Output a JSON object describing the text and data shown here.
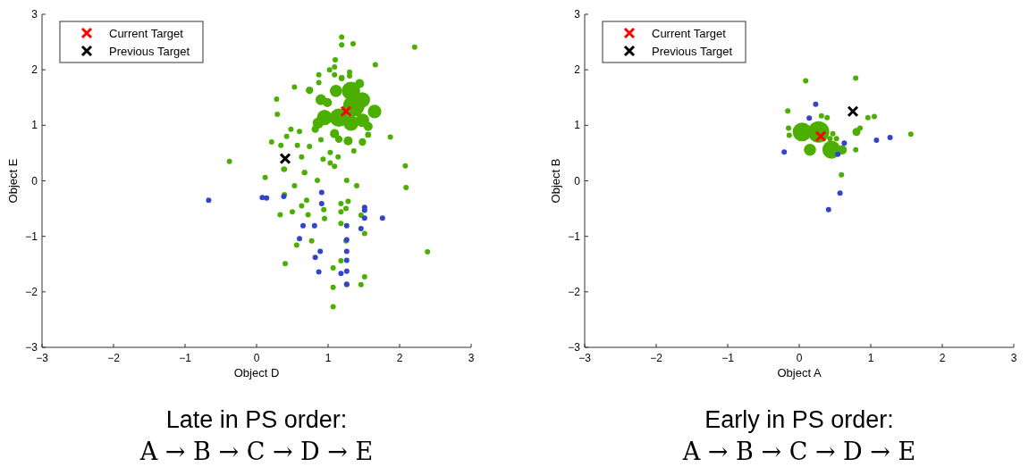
{
  "chart_data": [
    {
      "type": "bubble",
      "xlabel": "Object D",
      "ylabel": "Object E",
      "xlim": [
        -3,
        3
      ],
      "ylim": [
        -3,
        3
      ],
      "xticks": [
        -3,
        -2,
        -1,
        0,
        1,
        2,
        3
      ],
      "yticks": [
        -3,
        -2,
        -1,
        0,
        1,
        2,
        3
      ],
      "grid": false,
      "legend": "top left",
      "annotations": [
        "Late in PS order:",
        "A → B → C → D → E"
      ],
      "series": [
        {
          "color": "#4caf00",
          "x": [
            1.32,
            1.11,
            1.44,
            1.36,
            1.48,
            1.65,
            1.15,
            0.95,
            0.86,
            1.32,
            1.48,
            1.56,
            0.9,
            0.99,
            0.74,
            0.82,
            1.09,
            1.15,
            1.28,
            1.48,
            1.56,
            1.19
          ],
          "values": [
            1.62,
            1.62,
            1.75,
            1.35,
            1.46,
            1.25,
            1.14,
            1.14,
            1.04,
            1.04,
            1.09,
            0.98,
            1.46,
            1.41,
            1.63,
            0.93,
            0.85,
            0.75,
            0.72,
            0.7,
            0.83,
            1.85
          ],
          "sizes": [
            0.73,
            0.33,
            0.18,
            1,
            0.51,
            0.4,
            0.73,
            0.51,
            0.26,
            0.51,
            0.4,
            0.18,
            0.26,
            0.18,
            0.12,
            0.12,
            0.18,
            0.12,
            0.18,
            0.12,
            0.08,
            0.08
          ]
        },
        {
          "type": "scatter",
          "marker": "circle",
          "color": "#4caf00",
          "x": [
            1.3,
            1.09,
            1.1,
            1.02,
            0.87,
            0.87,
            1.09,
            1.3,
            1.66,
            0.9,
            1.36,
            1.03,
            1.14,
            0.29,
            0.48,
            0.6,
            0.42,
            0.57,
            0.74,
            0.34,
            1.09,
            1.87,
            2.08,
            1.19,
            1.19,
            1.35,
            2.21,
            0.28,
            0.53,
            0.21,
            0.12,
            -0.38,
            0.39,
            0.63,
            0.67,
            0.93,
            1.03,
            0.38,
            0.67,
            0.85,
            1.26,
            1.4,
            0.53,
            0.39,
            0.7,
            0.63,
            0.5,
            0.94,
            1.18,
            1.28,
            1.18,
            1.25,
            0.95,
            1.18,
            1.46,
            1.51,
            0.77,
            0.56,
            1.25,
            0.4,
            1.07,
            1.18,
            1.51,
            1.46,
            1.07,
            1.07,
            1.26,
            2.39,
            2.09,
            0.33,
            0.72
          ],
          "values": [
            1.96,
            2.05,
            2.18,
            2.0,
            1.91,
            1.77,
            1.91,
            1.89,
            2.09,
            0.74,
            0.54,
            0.51,
            0.43,
            1.2,
            0.93,
            0.89,
            0.8,
            0.64,
            0.62,
            0.64,
            0.26,
            0.79,
            0.27,
            2.59,
            2.45,
            2.47,
            2.41,
            1.47,
            1.69,
            0.7,
            0.06,
            0.35,
            0.21,
            0.43,
            0.15,
            0.39,
            0.32,
            0.21,
            0.15,
            0.01,
            0.01,
            -0.09,
            -0.09,
            -0.25,
            -0.35,
            -0.45,
            -0.56,
            -0.52,
            -0.41,
            -0.37,
            -0.56,
            -0.5,
            -0.68,
            -0.77,
            -0.62,
            -0.95,
            -1.08,
            -1.16,
            -1.08,
            -1.49,
            -1.57,
            -1.44,
            -1.73,
            -1.87,
            -1.92,
            -2.27,
            -1.87,
            -1.28,
            -0.12,
            -0.61,
            -0.61
          ]
        },
        {
          "type": "scatter",
          "marker": "circle",
          "color": "#3344cc",
          "x": [
            -0.67,
            0.08,
            0.14,
            0.38,
            0.91,
            0.91,
            1.51,
            1.51,
            1.51,
            1.76,
            0.81,
            0.65,
            1.26,
            1.46,
            0.6,
            1.26,
            0.89,
            1.26,
            0.82,
            1.26,
            1.26,
            0.87,
            1.18,
            1.26
          ],
          "values": [
            -0.35,
            -0.3,
            -0.31,
            -0.28,
            -0.21,
            -0.41,
            -0.48,
            -0.53,
            -0.67,
            -0.67,
            -0.81,
            -0.81,
            -0.81,
            -0.86,
            -1.04,
            -1.06,
            -1.27,
            -1.27,
            -1.38,
            -1.43,
            -1.63,
            -1.64,
            -1.67,
            -1.86
          ]
        },
        {
          "type": "scatter",
          "name": "Current Target",
          "color": "#ff0000",
          "marker": "cross",
          "x": [
            1.25
          ],
          "values": [
            1.25
          ]
        },
        {
          "type": "scatter",
          "name": "Previous Target",
          "color": "#000000",
          "marker": "cross",
          "x": [
            0.4
          ],
          "values": [
            0.4
          ]
        }
      ]
    },
    {
      "type": "bubble",
      "xlabel": "Object A",
      "ylabel": "Object B",
      "xlim": [
        -3,
        3
      ],
      "ylim": [
        -3,
        3
      ],
      "xticks": [
        -3,
        -2,
        -1,
        0,
        1,
        2,
        3
      ],
      "yticks": [
        -3,
        -2,
        -1,
        0,
        1,
        2,
        3
      ],
      "grid": false,
      "legend": "top left",
      "annotations": [
        "Early in PS order:",
        "A → B → C → D → E"
      ],
      "series": [
        {
          "color": "#4caf00",
          "x": [
            0.04,
            0.27,
            0.15,
            0.45,
            0.6,
            0.8
          ],
          "values": [
            0.88,
            0.88,
            0.56,
            0.56,
            0.56,
            0.88
          ],
          "sizes": [
            0.77,
            1,
            0.32,
            0.71,
            0.19,
            0.14
          ]
        },
        {
          "type": "scatter",
          "marker": "circle",
          "color": "#4caf00",
          "x": [
            0.43,
            0.39,
            0.31,
            -0.15,
            -0.14,
            -0.16,
            0.96,
            1.05,
            1.56,
            0.79,
            0.85,
            0.52,
            0.79,
            0.09,
            0.59,
            0.47
          ],
          "values": [
            0.76,
            1.14,
            1.17,
            0.95,
            0.82,
            1.26,
            1.14,
            1.16,
            0.84,
            0.56,
            0.95,
            0.76,
            1.85,
            1.8,
            0.11,
            0.85
          ]
        },
        {
          "type": "scatter",
          "marker": "circle",
          "color": "#3344cc",
          "x": [
            0.23,
            0.14,
            -0.21,
            0.63,
            1.08,
            1.27,
            0.57,
            0.41,
            0.54
          ],
          "values": [
            1.38,
            1.13,
            0.52,
            0.68,
            0.73,
            0.78,
            -0.22,
            -0.52,
            0.48
          ]
        },
        {
          "type": "scatter",
          "name": "Current Target",
          "color": "#ff0000",
          "marker": "cross",
          "x": [
            0.3
          ],
          "values": [
            0.8
          ]
        },
        {
          "type": "scatter",
          "name": "Previous Target",
          "color": "#000000",
          "marker": "cross",
          "x": [
            0.75
          ],
          "values": [
            1.25
          ]
        }
      ]
    }
  ]
}
